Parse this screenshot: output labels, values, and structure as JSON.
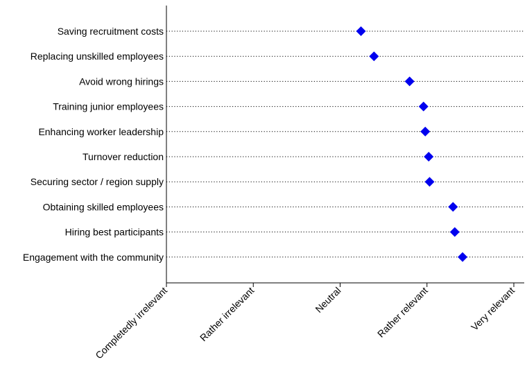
{
  "chart_data": {
    "type": "scatter",
    "title": "",
    "xlabel": "",
    "ylabel": "",
    "x_tick_labels": [
      "Completedly irrelevant",
      "Rather irrelevant",
      "Neutral",
      "Rather relevant",
      "Very relevant"
    ],
    "xlim": [
      1,
      5
    ],
    "categories": [
      "Saving recruitment costs",
      "Replacing unskilled employees",
      "Avoid wrong hirings",
      "Training junior employees",
      "Enhancing worker leadership",
      "Turnover reduction",
      "Securing sector / region supply",
      "Obtaining skilled employees",
      "Hiring best participants",
      "Engagement with the community"
    ],
    "values": [
      3.24,
      3.39,
      3.8,
      3.96,
      3.98,
      4.02,
      4.03,
      4.3,
      4.32,
      4.41
    ],
    "marker": "diamond",
    "marker_color": "#0000ee",
    "gridlines": "horizontal dotted",
    "legend": "none"
  }
}
